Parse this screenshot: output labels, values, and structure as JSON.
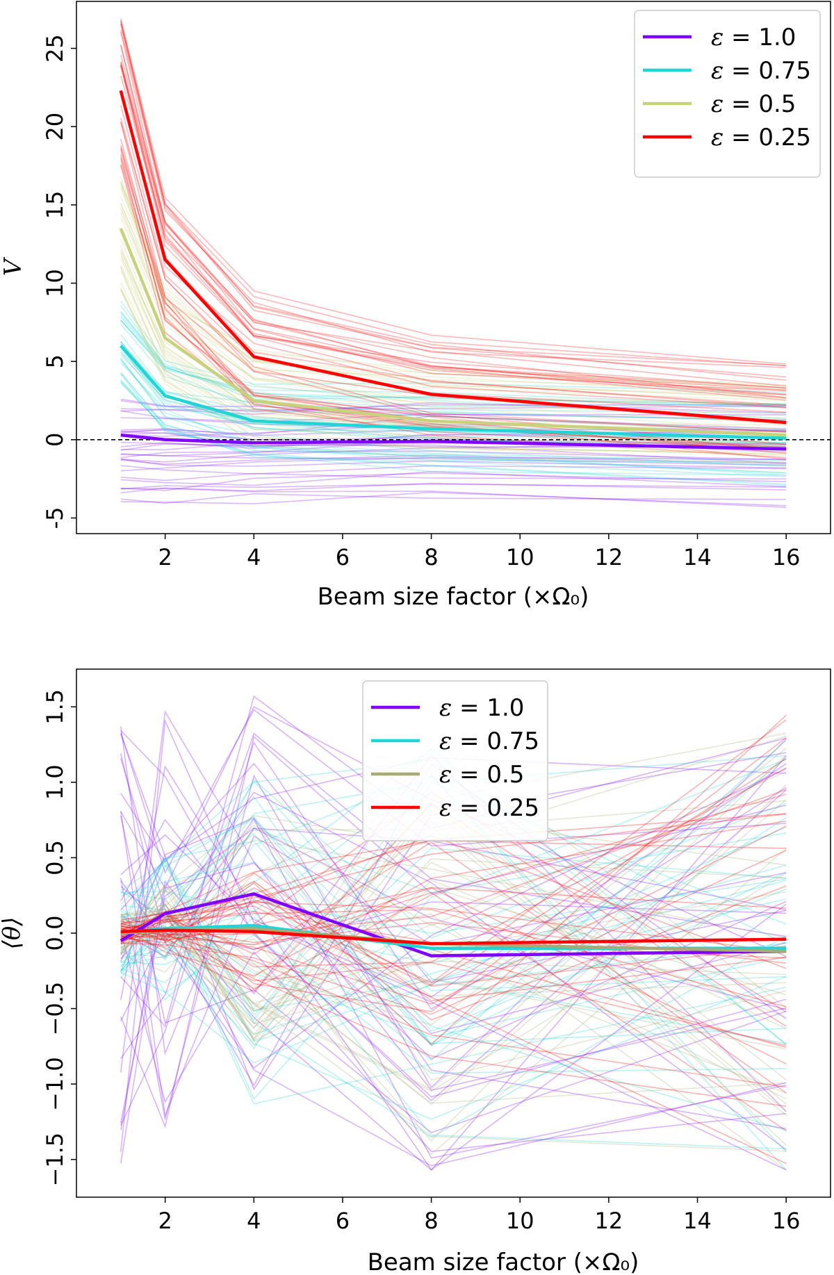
{
  "chart_data": [
    {
      "type": "line",
      "panel": "top",
      "xlabel": "Beam size factor (×Ω₀)",
      "ylabel": "V",
      "xlim": [
        0.0,
        17.0
      ],
      "ylim": [
        -6.0,
        28.0
      ],
      "xticks": [
        2,
        4,
        6,
        8,
        10,
        12,
        14,
        16
      ],
      "yticks": [
        -5,
        0,
        5,
        10,
        15,
        20,
        25
      ],
      "x": [
        1,
        2,
        4,
        8,
        16
      ],
      "reference_line": {
        "y": 0,
        "style": "dashed",
        "color": "#000000"
      },
      "legend_position": "top-right",
      "series": [
        {
          "name": "ε = 1.0",
          "label_sym": "ε",
          "label_val": "1.0",
          "color": "#8000ff",
          "mean": [
            0.3,
            0.0,
            -0.2,
            -0.1,
            -0.6
          ],
          "spread_start": [
            -4.0,
            2.6
          ],
          "spread_end": [
            -4.2,
            2.2
          ]
        },
        {
          "name": "ε = 0.75",
          "label_sym": "ε",
          "label_val": "0.75",
          "color": "#1fd5d5",
          "mean": [
            6.0,
            2.8,
            1.2,
            0.7,
            0.1
          ],
          "spread_start": [
            3.6,
            9.2
          ],
          "spread_end": [
            -2.6,
            2.8
          ]
        },
        {
          "name": "ε = 0.5",
          "label_sym": "ε",
          "label_val": "0.5",
          "color": "#c8d27a",
          "mean": [
            13.5,
            6.5,
            2.5,
            1.2,
            0.3
          ],
          "spread_start": [
            9.5,
            17.0
          ],
          "spread_end": [
            -1.5,
            3.5
          ]
        },
        {
          "name": "ε = 0.25",
          "label_sym": "ε",
          "label_val": "0.25",
          "color": "#ff0000",
          "mean": [
            22.3,
            11.5,
            5.3,
            2.9,
            1.1
          ],
          "spread_start": [
            17.5,
            27.2
          ],
          "spread_end": [
            -0.8,
            4.5
          ]
        }
      ]
    },
    {
      "type": "line",
      "panel": "bottom",
      "xlabel": "Beam size factor (×Ω₀)",
      "ylabel": "⟨θ⟩",
      "xlim": [
        0.0,
        17.0
      ],
      "ylim": [
        -1.75,
        1.75
      ],
      "xticks": [
        2,
        4,
        6,
        8,
        10,
        12,
        14,
        16
      ],
      "yticks": [
        -1.5,
        -1.0,
        -0.5,
        0.0,
        0.5,
        1.0,
        1.5
      ],
      "ytick_labels": [
        "−1.5",
        "−1.0",
        "−0.5",
        "0.0",
        "0.5",
        "1.0",
        "1.5"
      ],
      "x": [
        1,
        2,
        4,
        8,
        16
      ],
      "legend_position": "upper-center",
      "series": [
        {
          "name": "ε = 1.0",
          "label_sym": "ε",
          "label_val": "1.0",
          "color": "#8000ff",
          "mean": [
            -0.05,
            0.13,
            0.26,
            -0.15,
            -0.12
          ],
          "spread": [
            1.5,
            1.5,
            1.5,
            1.5,
            1.5
          ]
        },
        {
          "name": "ε = 0.75",
          "label_sym": "ε",
          "label_val": "0.75",
          "color": "#1fd5d5",
          "mean": [
            0.0,
            0.03,
            0.05,
            -0.1,
            -0.1
          ],
          "spread": [
            0.3,
            0.5,
            1.2,
            1.5,
            1.5
          ]
        },
        {
          "name": "ε = 0.5",
          "label_sym": "ε",
          "label_val": "0.5",
          "color": "#a9ab77",
          "mean": [
            0.0,
            0.02,
            0.03,
            -0.07,
            -0.12
          ],
          "spread": [
            0.15,
            0.3,
            0.8,
            1.4,
            1.5
          ]
        },
        {
          "name": "ε = 0.25",
          "label_sym": "ε",
          "label_val": "0.25",
          "color": "#ff0000",
          "mean": [
            0.01,
            0.02,
            0.01,
            -0.07,
            -0.04
          ],
          "spread": [
            0.08,
            0.15,
            0.4,
            1.1,
            1.5
          ]
        }
      ]
    }
  ]
}
